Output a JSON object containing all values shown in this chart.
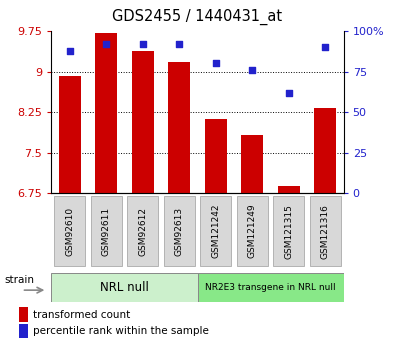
{
  "title": "GDS2455 / 1440431_at",
  "categories": [
    "GSM92610",
    "GSM92611",
    "GSM92612",
    "GSM92613",
    "GSM121242",
    "GSM121249",
    "GSM121315",
    "GSM121316"
  ],
  "bar_values": [
    8.92,
    9.72,
    9.38,
    9.18,
    8.12,
    7.82,
    6.88,
    8.32
  ],
  "dot_values_pct": [
    88,
    92,
    92,
    92,
    80,
    76,
    62,
    90
  ],
  "ylim_left": [
    6.75,
    9.75
  ],
  "ylim_right": [
    0,
    100
  ],
  "yticks_left": [
    6.75,
    7.5,
    8.25,
    9.0,
    9.75
  ],
  "ytick_labels_left": [
    "6.75",
    "7.5",
    "8.25",
    "9",
    "9.75"
  ],
  "yticks_right": [
    0,
    25,
    50,
    75,
    100
  ],
  "ytick_labels_right": [
    "0",
    "25",
    "50",
    "75",
    "100%"
  ],
  "bar_color": "#cc0000",
  "dot_color": "#2222cc",
  "bar_bottom": 6.75,
  "grid_yticks": [
    9.0,
    8.25,
    7.5
  ],
  "group1_label": "NRL null",
  "group2_label": "NR2E3 transgene in NRL null",
  "group1_color": "#ccf0cc",
  "group2_color": "#88e888",
  "strain_label": "strain",
  "legend_bar_label": "transformed count",
  "legend_dot_label": "percentile rank within the sample",
  "left_tick_color": "#cc0000",
  "right_tick_color": "#2222cc",
  "bar_width": 0.6,
  "tick_box_color": "#d8d8d8",
  "tick_box_edge": "#aaaaaa"
}
